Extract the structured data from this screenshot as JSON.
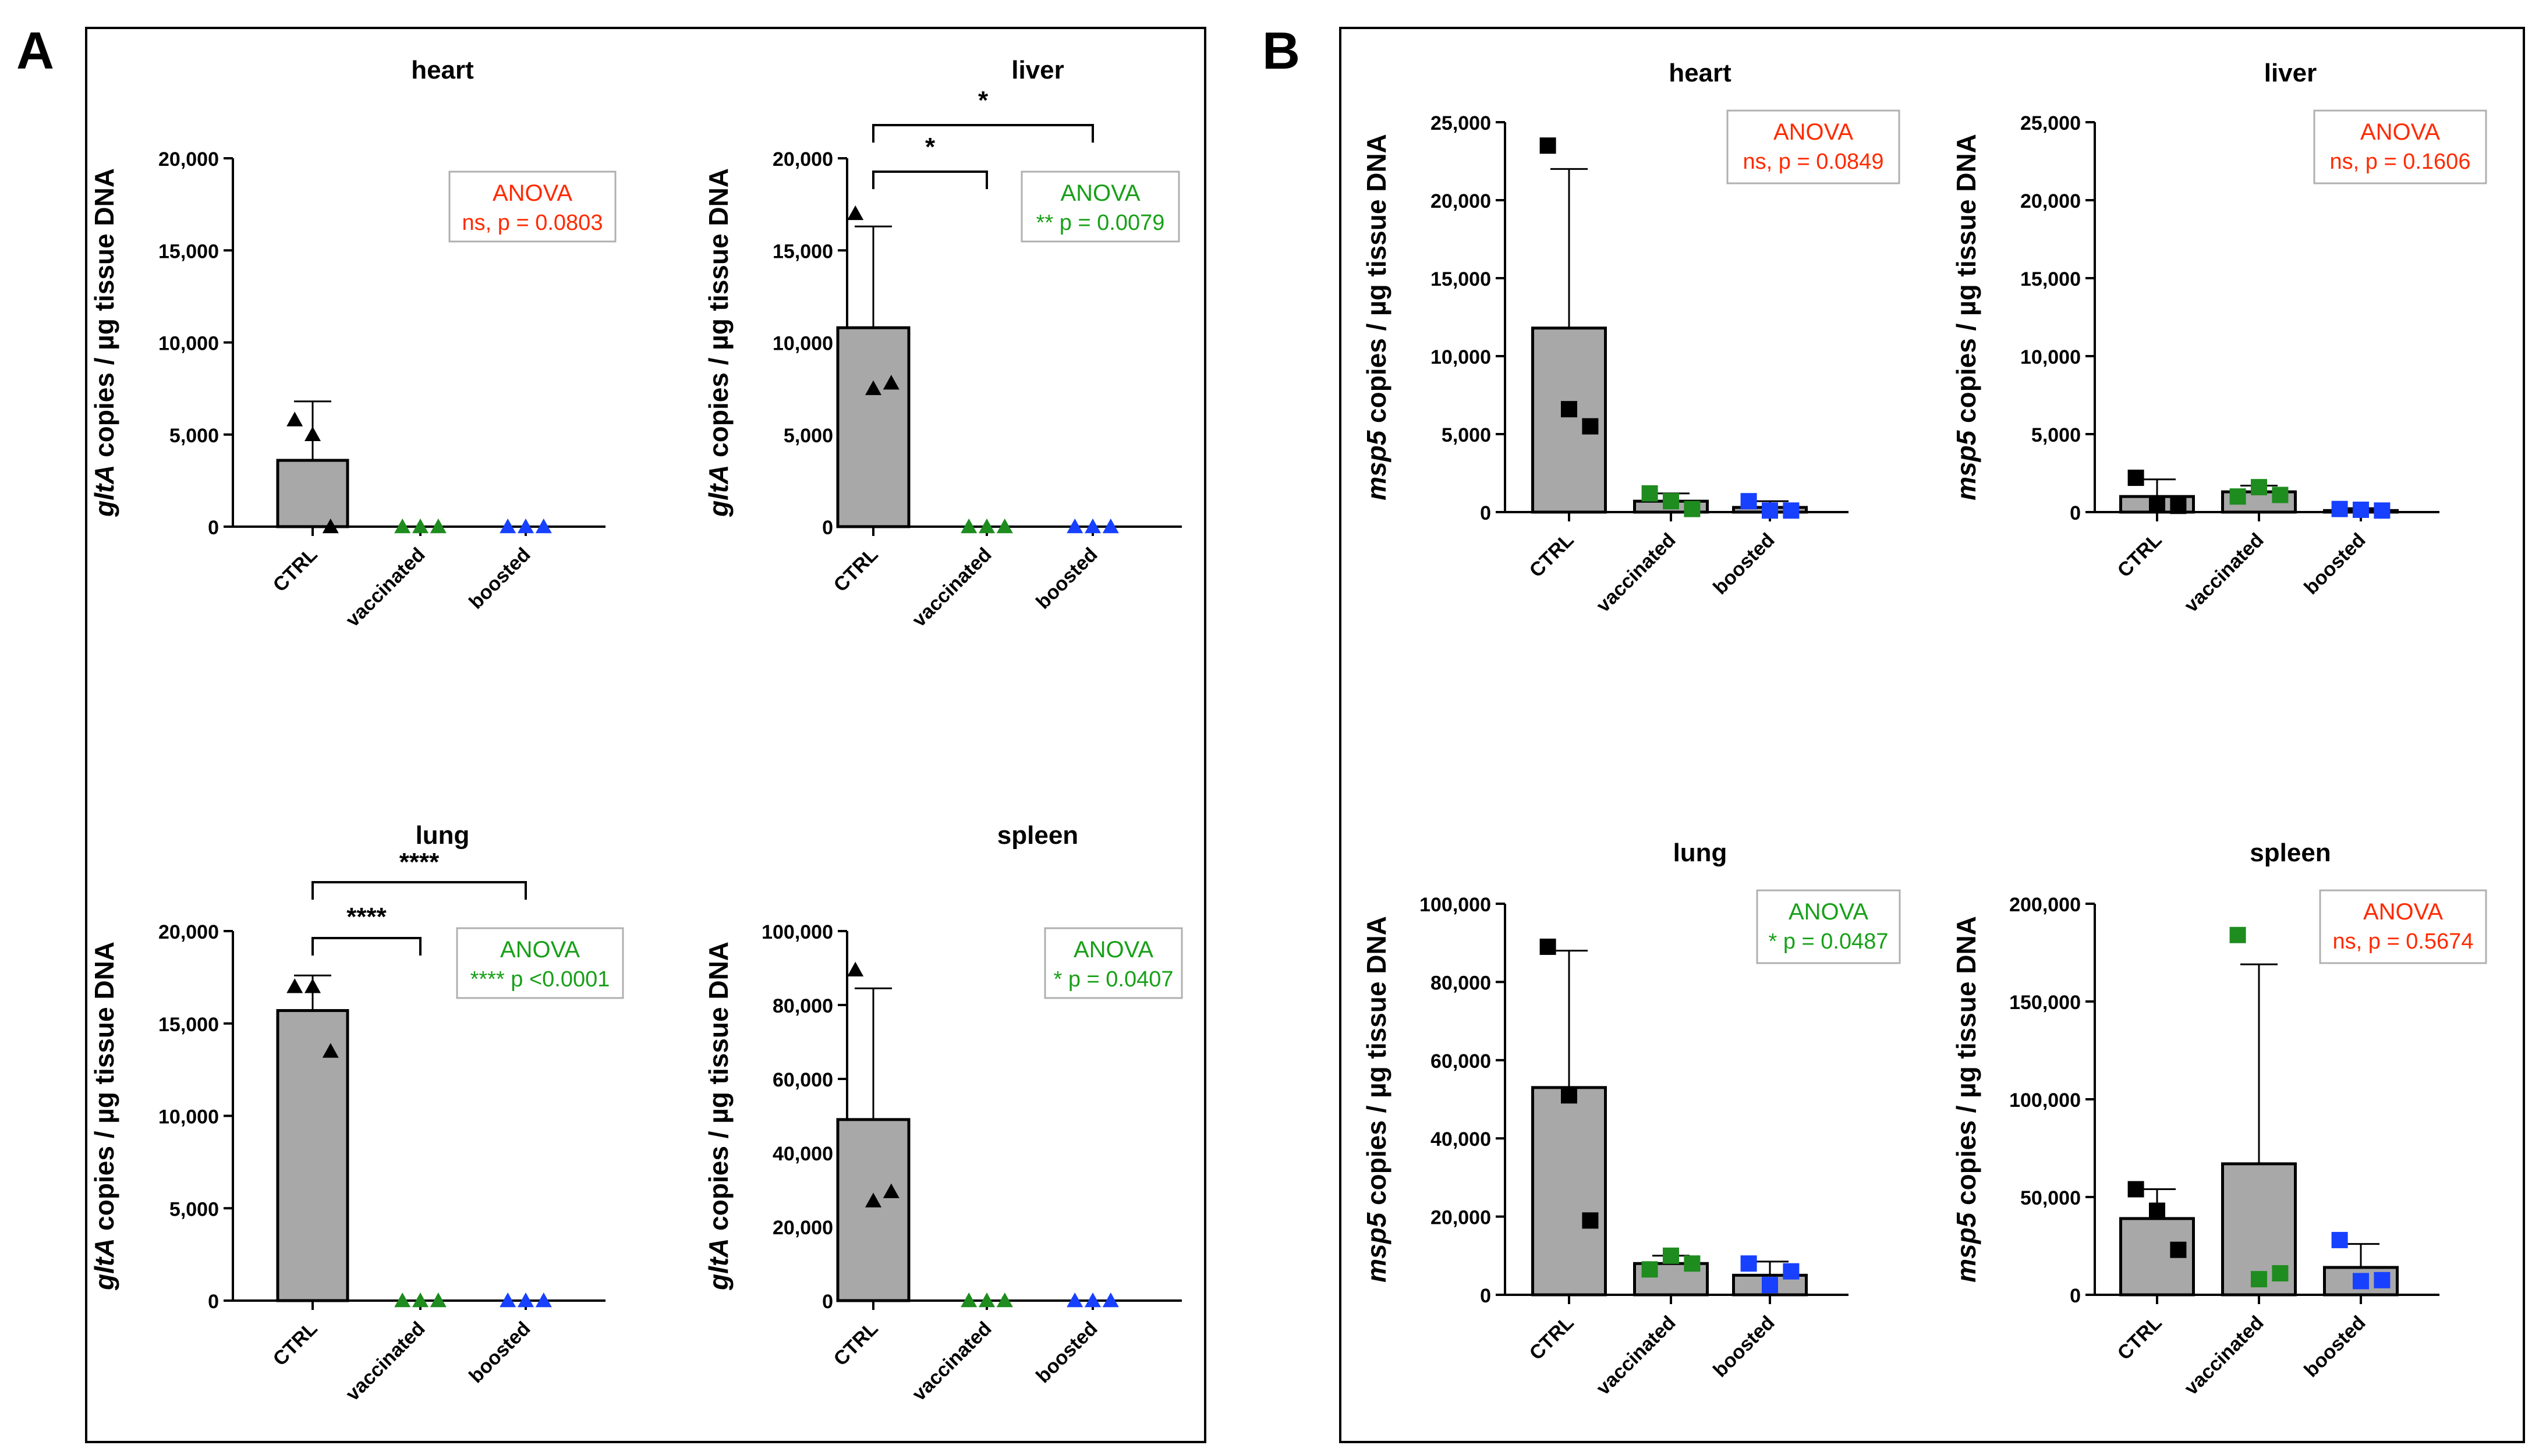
{
  "figure": {
    "panels": [
      {
        "letter": "A",
        "label": "panel-a",
        "y_unit_gene": "gltA",
        "y_unit_rest": " copies / µg tissue DNA"
      },
      {
        "letter": "B",
        "label": "panel-b",
        "y_unit_gene": "msp5",
        "y_unit_rest": " copies / µg tissue DNA"
      }
    ],
    "colors": {
      "ctrl_marker": "#000000",
      "vaccinated_marker": "#1e8c1e",
      "boosted_marker": "#1740ff",
      "bar_fill": "#a8a8a8",
      "ns_text": "#ff2a00",
      "sig_text": "#18a018",
      "box_border": "#b0b0b0"
    }
  },
  "chart_data": [
    {
      "panel": "A",
      "title": "heart",
      "type": "bar",
      "marker": "triangle",
      "categories": [
        "CTRL",
        "vaccinated",
        "boosted"
      ],
      "means": [
        3600,
        0,
        0
      ],
      "sd_upper": [
        6800,
        null,
        null
      ],
      "points": [
        [
          5800,
          5000,
          0
        ],
        [
          0,
          0,
          0
        ],
        [
          0,
          0,
          0
        ]
      ],
      "ylim": [
        0,
        20000
      ],
      "yticks": [
        0,
        5000,
        10000,
        15000,
        20000
      ],
      "yticklabels": [
        "0",
        "5,000",
        "10,000",
        "15,000",
        "20,000"
      ],
      "ylabel_gene": "gltA",
      "ylabel_rest": " copies / µg tissue DNA",
      "anova": {
        "label": "ANOVA",
        "result": "ns, p = 0.0803",
        "significant": false
      },
      "brackets": []
    },
    {
      "panel": "A",
      "title": "liver",
      "type": "bar",
      "marker": "triangle",
      "categories": [
        "CTRL",
        "vaccinated",
        "boosted"
      ],
      "means": [
        10800,
        0,
        0
      ],
      "sd_upper": [
        16300,
        null,
        null
      ],
      "points": [
        [
          17000,
          7500,
          7800
        ],
        [
          0,
          0,
          0
        ],
        [
          0,
          0,
          0
        ]
      ],
      "ylim": [
        0,
        20000
      ],
      "yticks": [
        0,
        5000,
        10000,
        15000,
        20000
      ],
      "yticklabels": [
        "0",
        "5,000",
        "10,000",
        "15,000",
        "20,000"
      ],
      "ylabel_gene": "gltA",
      "ylabel_rest": " copies / µg tissue DNA",
      "anova": {
        "label": "ANOVA",
        "result": "** p = 0.0079",
        "significant": true
      },
      "brackets": [
        {
          "from": 0,
          "to": 1,
          "label": "*"
        },
        {
          "from": 0,
          "to": 2,
          "label": "*"
        }
      ]
    },
    {
      "panel": "A",
      "title": "lung",
      "type": "bar",
      "marker": "triangle",
      "categories": [
        "CTRL",
        "vaccinated",
        "boosted"
      ],
      "means": [
        15700,
        0,
        0
      ],
      "sd_upper": [
        17600,
        null,
        null
      ],
      "points": [
        [
          17000,
          17000,
          13500
        ],
        [
          0,
          0,
          0
        ],
        [
          0,
          0,
          0
        ]
      ],
      "ylim": [
        0,
        20000
      ],
      "yticks": [
        0,
        5000,
        10000,
        15000,
        20000
      ],
      "yticklabels": [
        "0",
        "5,000",
        "10,000",
        "15,000",
        "20,000"
      ],
      "ylabel_gene": "gltA",
      "ylabel_rest": " copies / µg tissue DNA",
      "anova": {
        "label": "ANOVA",
        "result": "**** p <0.0001",
        "significant": true
      },
      "brackets": [
        {
          "from": 0,
          "to": 1,
          "label": "****"
        },
        {
          "from": 0,
          "to": 2,
          "label": "****"
        }
      ]
    },
    {
      "panel": "A",
      "title": "spleen",
      "type": "bar",
      "marker": "triangle",
      "categories": [
        "CTRL",
        "vaccinated",
        "boosted"
      ],
      "means": [
        49000,
        0,
        0
      ],
      "sd_upper": [
        84500,
        null,
        null
      ],
      "points": [
        [
          89500,
          27000,
          29500
        ],
        [
          0,
          0,
          0
        ],
        [
          0,
          0,
          0
        ]
      ],
      "ylim": [
        0,
        100000
      ],
      "yticks": [
        0,
        20000,
        40000,
        60000,
        80000,
        100000
      ],
      "yticklabels": [
        "0",
        "20,000",
        "40,000",
        "60,000",
        "80,000",
        "100,000"
      ],
      "ylabel_gene": "gltA",
      "ylabel_rest": " copies / µg tissue DNA",
      "anova": {
        "label": "ANOVA",
        "result": "* p = 0.0407",
        "significant": true
      },
      "brackets": []
    },
    {
      "panel": "B",
      "title": "heart",
      "type": "bar",
      "marker": "square",
      "categories": [
        "CTRL",
        "vaccinated",
        "boosted"
      ],
      "means": [
        11800,
        700,
        300
      ],
      "sd_upper": [
        22000,
        1200,
        700
      ],
      "points": [
        [
          23500,
          6600,
          5500
        ],
        [
          1200,
          700,
          200
        ],
        [
          700,
          100,
          100
        ]
      ],
      "ylim": [
        0,
        25000
      ],
      "yticks": [
        0,
        5000,
        10000,
        15000,
        20000,
        25000
      ],
      "yticklabels": [
        "0",
        "5,000",
        "10,000",
        "15,000",
        "20,000",
        "25,000"
      ],
      "ylabel_gene": "msp5",
      "ylabel_rest": " copies / µg tissue DNA",
      "anova": {
        "label": "ANOVA",
        "result": "ns, p = 0.0849",
        "significant": false
      },
      "brackets": []
    },
    {
      "panel": "B",
      "title": "liver",
      "type": "bar",
      "marker": "square",
      "categories": [
        "CTRL",
        "vaccinated",
        "boosted"
      ],
      "means": [
        1000,
        1300,
        100
      ],
      "sd_upper": [
        2100,
        1700,
        250
      ],
      "points": [
        [
          2200,
          500,
          400
        ],
        [
          1000,
          1600,
          1100
        ],
        [
          200,
          150,
          100
        ]
      ],
      "ylim": [
        0,
        25000
      ],
      "yticks": [
        0,
        5000,
        10000,
        15000,
        20000,
        25000
      ],
      "yticklabels": [
        "0",
        "5,000",
        "10,000",
        "15,000",
        "20,000",
        "25,000"
      ],
      "ylabel_gene": "msp5",
      "ylabel_rest": " copies / µg tissue DNA",
      "anova": {
        "label": "ANOVA",
        "result": "ns, p = 0.1606",
        "significant": false
      },
      "brackets": []
    },
    {
      "panel": "B",
      "title": "lung",
      "type": "bar",
      "marker": "square",
      "categories": [
        "CTRL",
        "vaccinated",
        "boosted"
      ],
      "means": [
        53000,
        8000,
        5000
      ],
      "sd_upper": [
        88000,
        10000,
        8500
      ],
      "points": [
        [
          89000,
          51000,
          19000
        ],
        [
          6500,
          10000,
          8000
        ],
        [
          8000,
          2500,
          6000
        ]
      ],
      "ylim": [
        0,
        100000
      ],
      "yticks": [
        0,
        20000,
        40000,
        60000,
        80000,
        100000
      ],
      "yticklabels": [
        "0",
        "20,000",
        "40,000",
        "60,000",
        "80,000",
        "100,000"
      ],
      "ylabel_gene": "msp5",
      "ylabel_rest": " copies / µg tissue DNA",
      "anova": {
        "label": "ANOVA",
        "result": "* p = 0.0487",
        "significant": true
      },
      "brackets": []
    },
    {
      "panel": "B",
      "title": "spleen",
      "type": "bar",
      "marker": "square",
      "categories": [
        "CTRL",
        "vaccinated",
        "boosted"
      ],
      "means": [
        39000,
        67000,
        14000
      ],
      "sd_upper": [
        54000,
        169000,
        26000
      ],
      "points": [
        [
          54000,
          43000,
          23000
        ],
        [
          184000,
          8000,
          11000
        ],
        [
          28000,
          7000,
          7500
        ]
      ],
      "ylim": [
        0,
        200000
      ],
      "yticks": [
        0,
        50000,
        100000,
        150000,
        200000
      ],
      "yticklabels": [
        "0",
        "50,000",
        "100,000",
        "150,000",
        "200,000"
      ],
      "ylabel_gene": "msp5",
      "ylabel_rest": " copies / µg tissue DNA",
      "anova": {
        "label": "ANOVA",
        "result": "ns, p = 0.5674",
        "significant": false
      },
      "brackets": []
    }
  ]
}
